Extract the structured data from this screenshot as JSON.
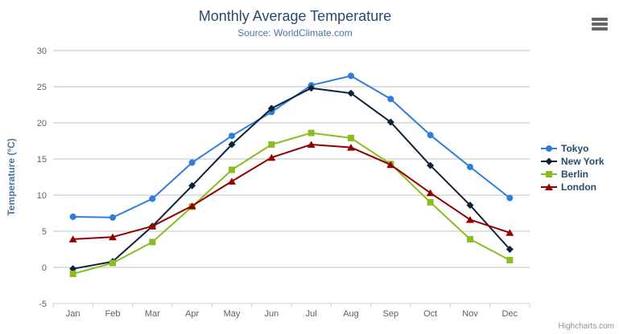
{
  "header": {
    "title": "Monthly Average Temperature",
    "subtitle": "Source: WorldClimate.com"
  },
  "credits": {
    "label": "Highcharts.com"
  },
  "chart_data": {
    "type": "line",
    "title": "Monthly Average Temperature",
    "subtitle": "Source: WorldClimate.com",
    "categories": [
      "Jan",
      "Feb",
      "Mar",
      "Apr",
      "May",
      "Jun",
      "Jul",
      "Aug",
      "Sep",
      "Oct",
      "Nov",
      "Dec"
    ],
    "series": [
      {
        "name": "Tokyo",
        "color": "#2f7ed8",
        "marker": "circle",
        "values": [
          7.0,
          6.9,
          9.5,
          14.5,
          18.2,
          21.5,
          25.2,
          26.5,
          23.3,
          18.3,
          13.9,
          9.6
        ]
      },
      {
        "name": "New York",
        "color": "#0d233a",
        "marker": "diamond",
        "values": [
          -0.2,
          0.8,
          5.7,
          11.3,
          17.0,
          22.0,
          24.8,
          24.1,
          20.1,
          14.1,
          8.6,
          2.5
        ]
      },
      {
        "name": "Berlin",
        "color": "#8bbc21",
        "marker": "square",
        "values": [
          -0.9,
          0.6,
          3.5,
          8.4,
          13.5,
          17.0,
          18.6,
          17.9,
          14.3,
          9.0,
          3.9,
          1.0
        ]
      },
      {
        "name": "London",
        "color": "#910000",
        "marker": "triangle",
        "values": [
          3.9,
          4.2,
          5.7,
          8.5,
          11.9,
          15.2,
          17.0,
          16.6,
          14.2,
          10.3,
          6.6,
          4.8
        ]
      }
    ],
    "xlabel": "",
    "ylabel": "Temperature (°C)",
    "ylim": [
      -5,
      30
    ],
    "ytick_step": 5,
    "grid": true,
    "legend_position": "right",
    "colors": {
      "grid": "#C0C0C0",
      "axis_line": "#C0D0E0",
      "tick_label": "#606060",
      "axis_title": "#4d759e",
      "title": "#274b6d",
      "subtitle": "#4d759e",
      "legend_text": "#274b6d",
      "credit": "#909090"
    }
  }
}
